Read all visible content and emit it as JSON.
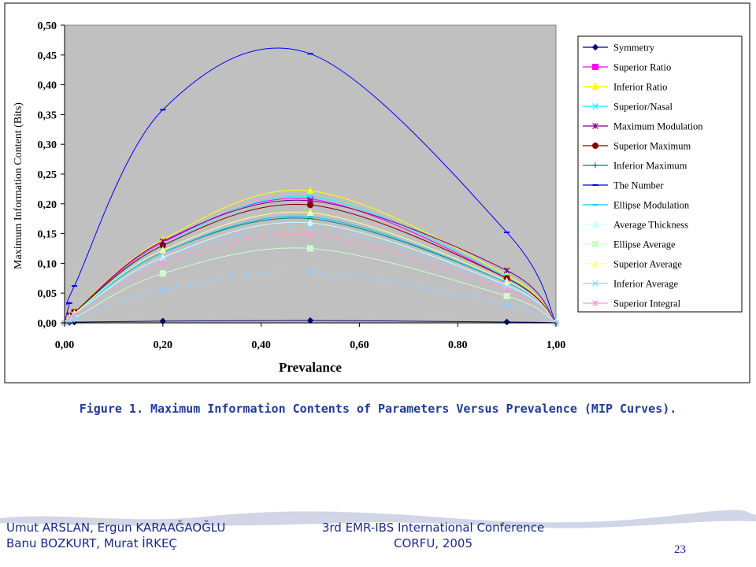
{
  "caption": "Figure 1. Maximum Information Contents of Parameters Versus Prevalence (MIP Curves).",
  "footer": {
    "authors_line1": "Umut ARSLAN, Ergun KARAAĞAOĞLU",
    "authors_line2": "Banu BOZKURT, Murat İRKEÇ",
    "conference_line1": "3rd EMR-IBS International Conference",
    "conference_line2": "CORFU, 2005",
    "page_number": "23"
  },
  "colors": {
    "plot_bg": "#c0c0c0",
    "axis": "#000000",
    "footer_wave": "#c5cbe0",
    "text_blue": "#1a2a8a"
  },
  "chart_data": {
    "type": "line",
    "xlabel": "Prevalance",
    "ylabel": "Maximum Information Content (Bits)",
    "xlim": [
      0,
      1
    ],
    "ylim": [
      0,
      0.5
    ],
    "x_ticks": [
      "0,00",
      "0,20",
      "0,40",
      "0,60",
      "0.80",
      "1,00"
    ],
    "y_ticks": [
      "0,00",
      "0,05",
      "0,10",
      "0,15",
      "0,20",
      "0,25",
      "0,30",
      "0,35",
      "0,40",
      "0,45",
      "0,50"
    ],
    "x_tick_values": [
      0,
      0.2,
      0.4,
      0.6,
      0.8,
      1.0
    ],
    "y_tick_values": [
      0,
      0.05,
      0.1,
      0.15,
      0.2,
      0.25,
      0.3,
      0.35,
      0.4,
      0.45,
      0.5
    ],
    "grid": false,
    "legend_position": "right",
    "x": [
      0,
      0.01,
      0.02,
      0.2,
      0.5,
      0.9,
      1.0
    ],
    "series": [
      {
        "name": "Symmetry",
        "color": "#000080",
        "marker": "diamond",
        "values": [
          0,
          0.0008,
          0.0012,
          0.003,
          0.004,
          0.0015,
          0
        ]
      },
      {
        "name": "Superior Ratio",
        "color": "#ff00ff",
        "marker": "square",
        "values": [
          0,
          0.012,
          0.018,
          0.135,
          0.208,
          0.075,
          0
        ]
      },
      {
        "name": "Inferior Ratio",
        "color": "#ffff00",
        "marker": "triangle",
        "values": [
          0,
          0.013,
          0.019,
          0.14,
          0.222,
          0.08,
          0
        ]
      },
      {
        "name": "Superior/Nasal",
        "color": "#00ffff",
        "marker": "x",
        "values": [
          0,
          0.011,
          0.017,
          0.13,
          0.212,
          0.077,
          0
        ]
      },
      {
        "name": "Maximum Modulation",
        "color": "#800080",
        "marker": "star",
        "values": [
          0,
          0.012,
          0.018,
          0.137,
          0.205,
          0.088,
          0
        ]
      },
      {
        "name": "Superior Maximum",
        "color": "#800000",
        "marker": "circle",
        "values": [
          0,
          0.012,
          0.018,
          0.13,
          0.198,
          0.075,
          0
        ]
      },
      {
        "name": "Inferior Maximum",
        "color": "#008080",
        "marker": "plus",
        "values": [
          0,
          0.01,
          0.016,
          0.118,
          0.175,
          0.068,
          0
        ]
      },
      {
        "name": "The Number",
        "color": "#0000ff",
        "marker": "dash",
        "values": [
          0,
          0.033,
          0.062,
          0.358,
          0.452,
          0.152,
          0
        ]
      },
      {
        "name": "Ellipse Modulation",
        "color": "#00ccff",
        "marker": "dash",
        "values": [
          0,
          0.01,
          0.016,
          0.118,
          0.178,
          0.068,
          0
        ]
      },
      {
        "name": "Average Thickness",
        "color": "#ccffff",
        "marker": "triangle",
        "values": [
          0,
          0.009,
          0.015,
          0.11,
          0.168,
          0.063,
          0
        ]
      },
      {
        "name": "Ellipse Average",
        "color": "#ccffcc",
        "marker": "square",
        "values": [
          0,
          0.005,
          0.008,
          0.083,
          0.125,
          0.045,
          0
        ]
      },
      {
        "name": "Superior Average",
        "color": "#ffff99",
        "marker": "triangle",
        "values": [
          0,
          0.01,
          0.016,
          0.122,
          0.185,
          0.07,
          0
        ]
      },
      {
        "name": "Inferior Average",
        "color": "#99ccff",
        "marker": "x",
        "values": [
          0,
          0.009,
          0.014,
          0.105,
          0.16,
          0.06,
          0
        ]
      },
      {
        "name": "Superior Integral",
        "color": "#ff99cc",
        "marker": "star",
        "values": [
          0,
          0.008,
          0.013,
          0.1,
          0.148,
          0.055,
          0
        ]
      },
      {
        "name": "",
        "color": "#99ccff",
        "marker": "diamond",
        "values": [
          0,
          0.003,
          0.006,
          0.055,
          0.086,
          0.03,
          0
        ]
      }
    ]
  }
}
